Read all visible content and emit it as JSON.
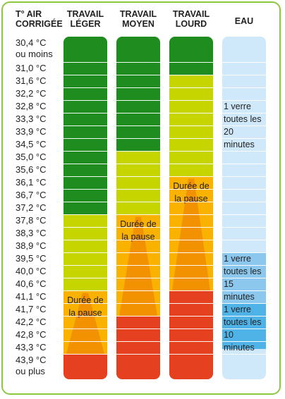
{
  "headers": {
    "temp": [
      "T° AIR",
      "CORRIGÉE"
    ],
    "light": [
      "TRAVAIL",
      "LÉGER"
    ],
    "moderate": [
      "TRAVAIL",
      "MOYEN"
    ],
    "heavy": [
      "TRAVAIL",
      "LOURD"
    ],
    "water": [
      "EAU"
    ]
  },
  "temperatures": [
    [
      "30,4 °C",
      "ou moins"
    ],
    [
      "31,0 °C"
    ],
    [
      "31,6 °C"
    ],
    [
      "32,2 °C"
    ],
    [
      "32,8 °C"
    ],
    [
      "33,3 °C"
    ],
    [
      "33,9 °C"
    ],
    [
      "34,5 °C"
    ],
    [
      "35,0 °C"
    ],
    [
      "35,6 °C"
    ],
    [
      "36,1 °C"
    ],
    [
      "36,7 °C"
    ],
    [
      "37,2 °C"
    ],
    [
      "37,8 °C"
    ],
    [
      "38,3 °C"
    ],
    [
      "38,9 °C"
    ],
    [
      "39,5 °C"
    ],
    [
      "40,0 °C"
    ],
    [
      "40,6 °C"
    ],
    [
      "41,1 °C"
    ],
    [
      "41,7 °C"
    ],
    [
      "42,2 °C"
    ],
    [
      "42,8 °C"
    ],
    [
      "43,3 °C"
    ],
    [
      "43,9 °C",
      "ou plus"
    ]
  ],
  "pause_label": [
    "Durée de",
    "la pause"
  ],
  "water": {
    "w20": [
      "1 verre",
      "toutes les",
      "20 minutes"
    ],
    "w15": [
      "1 verre",
      "toutes les",
      "15 minutes"
    ],
    "w10": [
      "1 verre",
      "toutes les",
      "10 minutes"
    ]
  },
  "colors": {
    "dark_green": "#1e8c1e",
    "yellow_green": "#c6d400",
    "orange_yellow": "#f9b200",
    "pause_orange": "#f39200",
    "red": "#e5401f",
    "water_light": "#cfe8fa",
    "water_mid": "#8cc7ee",
    "water_strong": "#4fb3e8",
    "border": "#8dc63f"
  }
}
